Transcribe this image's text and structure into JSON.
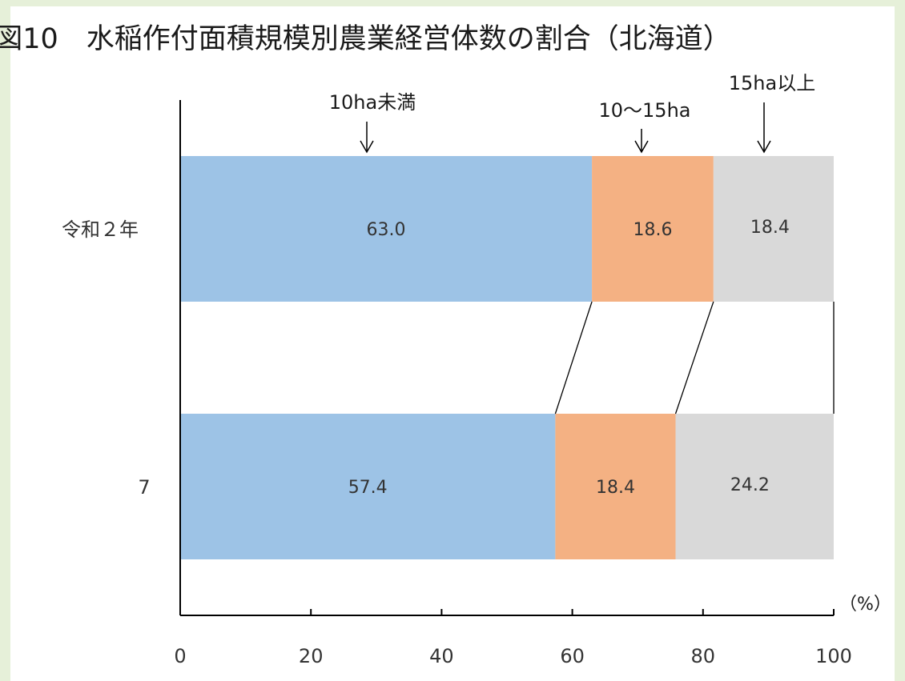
{
  "chart_data": {
    "type": "bar",
    "orientation": "horizontal",
    "stacked": true,
    "title": "図10　水稲作付面積規模別農業経営体数の割合（北海道）",
    "categories": [
      "令和２年",
      "7"
    ],
    "series": [
      {
        "name": "10ha未満",
        "values": [
          63.0,
          57.4
        ],
        "color": "#9dc3e6"
      },
      {
        "name": "10～15ha",
        "values": [
          18.6,
          18.4
        ],
        "color": "#f4b183"
      },
      {
        "name": "15ha以上",
        "values": [
          18.4,
          24.2
        ],
        "color": "#d9d9d9"
      }
    ],
    "value_labels": [
      [
        "63.0",
        "57.4"
      ],
      [
        "18.6",
        "18.4"
      ],
      [
        "18.4",
        "24.2"
      ]
    ],
    "x_ticks": [
      "0",
      "20",
      "40",
      "60",
      "80",
      "100"
    ],
    "xlim": [
      0,
      100
    ],
    "x_unit": "（%）",
    "series_arrow": "↓",
    "connector_lines": true,
    "grid": false
  }
}
